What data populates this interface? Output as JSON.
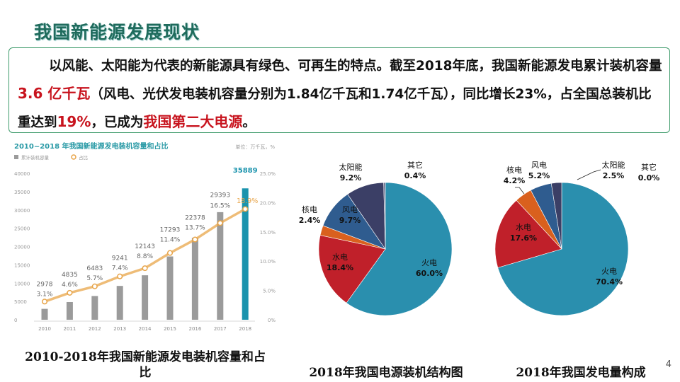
{
  "title": "我国新能源发展现状",
  "intro": {
    "t1": "以风能、太阳能为代表的新能源具有绿色、可再生的特点。截至2018年底，我国新能源发电累计装机容量",
    "h1": "3.6 亿千瓦",
    "t2": "（风电、光伏发电装机容量分别为1.84亿千瓦和1.74亿千瓦），同比增长23%，占全国总装机比重达到",
    "h2": "19%",
    "t3": "，已成为",
    "h3": "我国第二大电源",
    "t4": "。"
  },
  "captions": {
    "bar": "2010-2018年我国新能源发电装机容量和占比",
    "pie1": "2018年我国电源装机结构图",
    "pie2": "2018年我国发电量构成"
  },
  "page_number": "4",
  "colors": {
    "bar": "#9b9b9b",
    "bar_highlight": "#1a93ad",
    "line": "#e8a54a",
    "fire": "#2a8fae",
    "hydro": "#c0202a",
    "nuclear": "#d9601e",
    "wind": "#2f5c8f",
    "solar": "#3b3f66",
    "other": "#6a6a8a"
  },
  "chart_data": [
    {
      "type": "bar",
      "title": "2010~2018 年我国新能源发电装机容量和占比",
      "unit": "单位：万千瓦，%",
      "legend": [
        "累计装机容量",
        "占比"
      ],
      "categories": [
        "2010",
        "2011",
        "2012",
        "2013",
        "2014",
        "2015",
        "2016",
        "2017",
        "2018"
      ],
      "series": [
        {
          "name": "累计装机容量",
          "type": "bar",
          "values": [
            2978,
            4835,
            6483,
            9241,
            12143,
            17293,
            22378,
            29393,
            35889
          ]
        },
        {
          "name": "占比",
          "type": "line",
          "values": [
            3.1,
            4.6,
            5.7,
            7.4,
            8.8,
            11.4,
            13.7,
            16.5,
            18.9
          ],
          "labels": [
            "3.1%",
            "4.6%",
            "5.7%",
            "7.4%",
            "8.8%",
            "11.4%",
            "13.7%",
            "16.5%",
            "18.9%"
          ]
        }
      ],
      "ylim": [
        0,
        40000
      ],
      "yticks": [
        "0",
        "5000",
        "10000",
        "15000",
        "20000",
        "25000",
        "30000",
        "35000",
        "40000"
      ],
      "y2lim": [
        0,
        25
      ],
      "y2ticks": [
        "0%",
        "5.0%",
        "10.0%",
        "15.0%",
        "20.0%",
        "25.0%"
      ],
      "grid": false
    },
    {
      "type": "pie",
      "title": "2018年我国电源装机结构图",
      "slices": [
        {
          "name": "火电",
          "value": 60.0,
          "label": "60.0%",
          "color": "#2a8fae"
        },
        {
          "name": "水电",
          "value": 18.4,
          "label": "18.4%",
          "color": "#c0202a"
        },
        {
          "name": "核电",
          "value": 2.4,
          "label": "2.4%",
          "color": "#d9601e"
        },
        {
          "name": "风电",
          "value": 9.7,
          "label": "9.7%",
          "color": "#2f5c8f"
        },
        {
          "name": "太阳能",
          "value": 9.2,
          "label": "9.2%",
          "color": "#3b3f66"
        },
        {
          "name": "其它",
          "value": 0.4,
          "label": "0.4%",
          "color": "#6a6a8a"
        }
      ]
    },
    {
      "type": "pie",
      "title": "2018年我国发电量构成",
      "slices": [
        {
          "name": "火电",
          "value": 70.4,
          "label": "70.4%",
          "color": "#2a8fae"
        },
        {
          "name": "水电",
          "value": 17.6,
          "label": "17.6%",
          "color": "#c0202a"
        },
        {
          "name": "核电",
          "value": 4.2,
          "label": "4.2%",
          "color": "#d9601e"
        },
        {
          "name": "风电",
          "value": 5.2,
          "label": "5.2%",
          "color": "#2f5c8f"
        },
        {
          "name": "太阳能",
          "value": 2.5,
          "label": "2.5%",
          "color": "#3b3f66"
        },
        {
          "name": "其它",
          "value": 0.0,
          "label": "0.0%",
          "color": "#6a6a8a"
        }
      ]
    }
  ]
}
